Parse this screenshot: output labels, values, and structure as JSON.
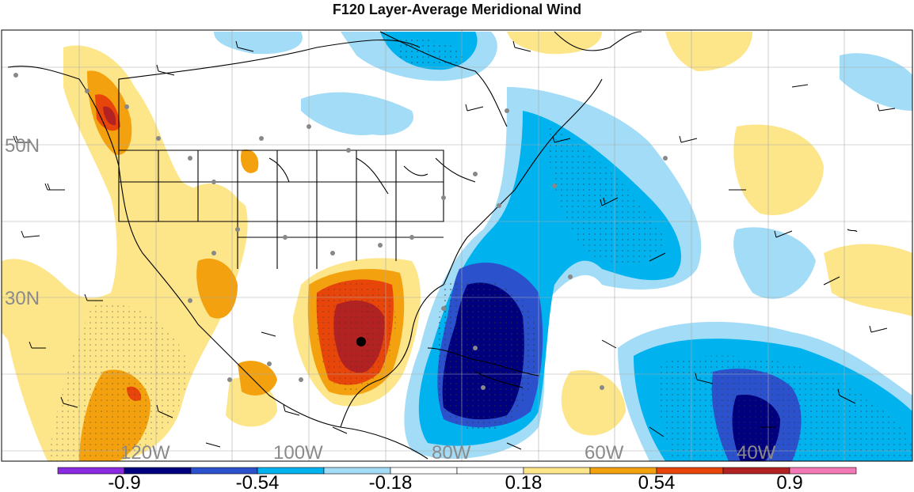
{
  "title": "F120 Layer-Average Meridional Wind",
  "lat_labels": [
    "50N",
    "30N"
  ],
  "lon_labels": [
    "120W",
    "100W",
    "80W",
    "60W",
    "40W"
  ],
  "colorbar": {
    "colors": [
      "#8a2be2",
      "#00007f",
      "#2b52cc",
      "#00b2ee",
      "#a3dcf7",
      "#ffffff",
      "#ffffff",
      "#fde58a",
      "#f3a10e",
      "#e8450b",
      "#b22222",
      "#f279b5"
    ],
    "labels": [
      "-0.9",
      "-0.54",
      "-0.18",
      "0.18",
      "0.54",
      "0.9"
    ]
  },
  "legend_colors": {
    "neg_strong": "#00007f",
    "neg_mid": "#2b52cc",
    "neg": "#00b2ee",
    "neg_weak": "#a3dcf7",
    "pos_weak": "#fde58a",
    "pos": "#f3a10e",
    "pos_mid": "#e8450b",
    "pos_strong": "#b22222"
  }
}
